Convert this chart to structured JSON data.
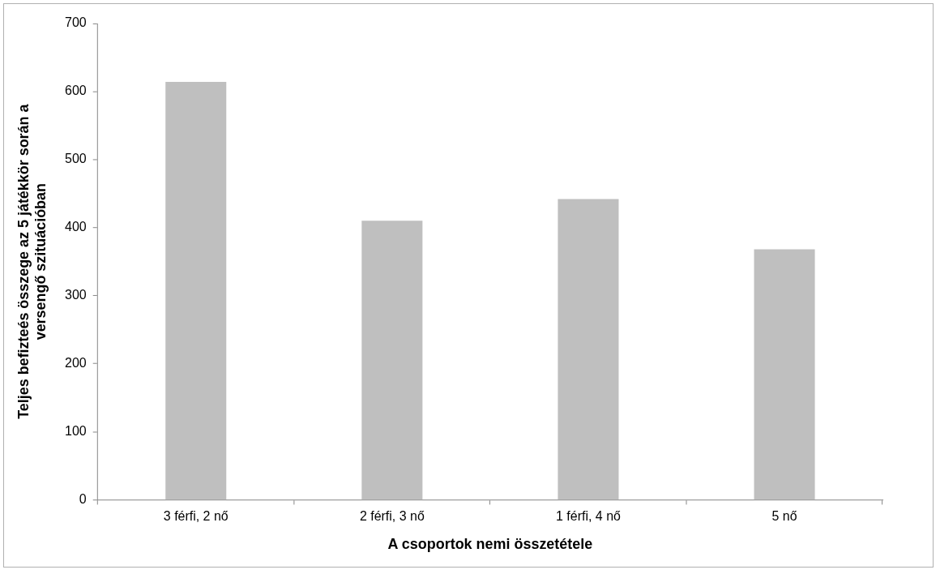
{
  "chart_data": {
    "type": "bar",
    "xlabel": "A csoportok nemi összetétele",
    "ylabel": "Teljes befizteés összege az 5 játékkör során a versengő szituációban",
    "categories": [
      "3 férfi, 2 nő",
      "2 férfi, 3 nő",
      "1 férfi, 4 nő",
      "5 nő"
    ],
    "values": [
      614,
      410,
      442,
      368
    ],
    "color": "#bfbfbf",
    "ylim": [
      0,
      700
    ],
    "yticks": [
      0,
      100,
      200,
      300,
      400,
      500,
      600,
      700
    ],
    "grid": false,
    "legend": false
  }
}
